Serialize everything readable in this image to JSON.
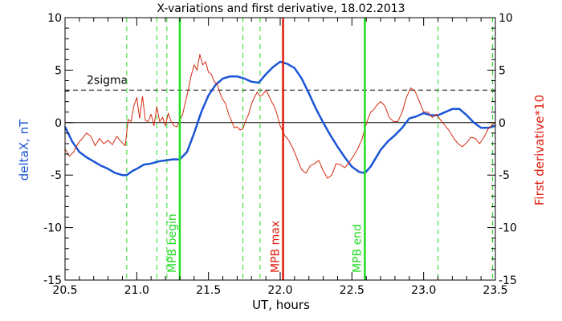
{
  "chart_data": {
    "type": "line",
    "title": "X-variations and first derivative, 18.02.2013",
    "xlabel": "UT, hours",
    "ylabel_left": "deltaX, nT",
    "ylabel_right": "First derivative*10",
    "xlim": [
      20.5,
      23.5
    ],
    "ylim_left": [
      -15,
      10
    ],
    "ylim_right": [
      -15,
      10
    ],
    "x_ticks": [
      "20.5",
      "21.0",
      "21.5",
      "22.0",
      "22.5",
      "23.0",
      "23.5"
    ],
    "x_tick_values": [
      20.5,
      21.0,
      21.5,
      22.0,
      22.5,
      23.0,
      23.5
    ],
    "y_ticks": [
      "-15",
      "-10",
      "-5",
      "0",
      "5",
      "10"
    ],
    "y_tick_values": [
      -15,
      -10,
      -5,
      0,
      5,
      10
    ],
    "zero_line": 0,
    "sigma_line": {
      "label": "2sigma",
      "value": 3.1
    },
    "colors": {
      "deltaX": "#1a55d6",
      "derivative": "#d42a10",
      "green": "#22dd22",
      "red_line": "#e01a0a"
    },
    "vlines_major": [
      {
        "x": 21.3,
        "label": "MPB begin",
        "color": "#22dd22"
      },
      {
        "x": 22.02,
        "label": "MPB max",
        "color": "#e01a0a"
      },
      {
        "x": 22.59,
        "label": "MPB end",
        "color": "#22dd22"
      }
    ],
    "vlines_dashed": [
      20.93,
      21.14,
      21.21,
      21.74,
      21.86,
      23.1,
      23.48
    ],
    "series": [
      {
        "key": "deltaX",
        "color": "#1a55d6",
        "x": [
          20.5,
          20.55,
          20.6,
          20.65,
          20.7,
          20.75,
          20.8,
          20.85,
          20.9,
          20.93,
          20.97,
          21.0,
          21.05,
          21.1,
          21.15,
          21.2,
          21.25,
          21.3,
          21.35,
          21.4,
          21.45,
          21.5,
          21.55,
          21.6,
          21.65,
          21.7,
          21.75,
          21.8,
          21.85,
          21.9,
          21.95,
          22.0,
          22.05,
          22.1,
          22.15,
          22.2,
          22.25,
          22.3,
          22.35,
          22.4,
          22.45,
          22.5,
          22.55,
          22.59,
          22.63,
          22.7,
          22.75,
          22.8,
          22.85,
          22.9,
          22.95,
          23.0,
          23.05,
          23.1,
          23.15,
          23.2,
          23.25,
          23.3,
          23.35,
          23.4,
          23.45,
          23.5
        ],
        "y": [
          -0.4,
          -1.8,
          -2.8,
          -3.3,
          -3.7,
          -4.1,
          -4.4,
          -4.8,
          -5.0,
          -5.0,
          -4.6,
          -4.4,
          -4.0,
          -3.9,
          -3.7,
          -3.6,
          -3.5,
          -3.5,
          -2.8,
          -1.0,
          1.0,
          2.6,
          3.6,
          4.2,
          4.4,
          4.4,
          4.2,
          3.9,
          3.8,
          4.6,
          5.3,
          5.8,
          5.6,
          5.2,
          4.2,
          2.8,
          1.3,
          0.0,
          -1.2,
          -2.3,
          -3.3,
          -4.2,
          -4.7,
          -4.8,
          -4.2,
          -2.6,
          -1.8,
          -1.2,
          -0.5,
          0.4,
          0.6,
          0.9,
          0.7,
          0.7,
          1.0,
          1.3,
          1.3,
          0.7,
          0.0,
          -0.5,
          -0.5,
          -0.3
        ]
      },
      {
        "key": "derivative",
        "color": "#d42a10",
        "x": [
          20.5,
          20.53,
          20.56,
          20.59,
          20.62,
          20.65,
          20.68,
          20.71,
          20.74,
          20.77,
          20.8,
          20.83,
          20.86,
          20.89,
          20.92,
          20.94,
          20.96,
          20.98,
          21.0,
          21.02,
          21.04,
          21.06,
          21.08,
          21.1,
          21.12,
          21.14,
          21.16,
          21.18,
          21.2,
          21.22,
          21.24,
          21.26,
          21.28,
          21.3,
          21.32,
          21.34,
          21.36,
          21.38,
          21.4,
          21.42,
          21.44,
          21.46,
          21.48,
          21.5,
          21.52,
          21.54,
          21.56,
          21.58,
          21.6,
          21.62,
          21.64,
          21.66,
          21.68,
          21.7,
          21.72,
          21.74,
          21.76,
          21.78,
          21.8,
          21.82,
          21.84,
          21.86,
          21.88,
          21.9,
          21.92,
          21.94,
          21.96,
          21.98,
          22.0,
          22.03,
          22.06,
          22.09,
          22.12,
          22.15,
          22.18,
          22.21,
          22.24,
          22.27,
          22.3,
          22.33,
          22.36,
          22.39,
          22.42,
          22.45,
          22.48,
          22.51,
          22.54,
          22.57,
          22.59,
          22.61,
          22.63,
          22.65,
          22.67,
          22.7,
          22.73,
          22.76,
          22.79,
          22.82,
          22.85,
          22.88,
          22.91,
          22.94,
          22.97,
          23.0,
          23.03,
          23.06,
          23.09,
          23.12,
          23.15,
          23.18,
          23.21,
          23.24,
          23.27,
          23.3,
          23.33,
          23.36,
          23.39,
          23.42,
          23.45,
          23.48,
          23.5
        ],
        "y": [
          -2.5,
          -3.2,
          -2.8,
          -2.0,
          -1.5,
          -1.0,
          -1.3,
          -2.2,
          -1.5,
          -2.0,
          -1.7,
          -2.1,
          -1.3,
          -1.8,
          -2.2,
          0.3,
          0.1,
          1.6,
          2.4,
          0.4,
          2.5,
          0.2,
          0.1,
          0.8,
          -0.3,
          1.5,
          0.1,
          0.5,
          -0.3,
          0.9,
          0.1,
          -0.3,
          -0.4,
          0.2,
          0.8,
          2.0,
          3.2,
          4.5,
          5.5,
          5.0,
          6.5,
          5.5,
          5.8,
          4.8,
          4.6,
          3.9,
          3.7,
          2.8,
          2.2,
          1.8,
          0.8,
          0.2,
          -0.5,
          -0.4,
          -0.7,
          -0.6,
          0.2,
          0.8,
          1.8,
          2.4,
          2.9,
          2.5,
          2.7,
          3.1,
          2.6,
          2.0,
          1.5,
          0.7,
          -0.3,
          -1.2,
          -1.7,
          -2.5,
          -3.5,
          -4.5,
          -4.8,
          -4.1,
          -3.9,
          -3.6,
          -4.6,
          -5.3,
          -5.0,
          -3.9,
          -4.0,
          -4.3,
          -3.8,
          -3.2,
          -2.5,
          -1.6,
          -0.6,
          0.3,
          1.0,
          1.2,
          1.6,
          2.0,
          1.6,
          0.5,
          0.1,
          0.1,
          1.0,
          2.4,
          3.3,
          3.0,
          2.0,
          1.0,
          1.0,
          0.5,
          0.8,
          0.2,
          -0.3,
          -0.8,
          -1.5,
          -2.0,
          -2.3,
          -1.9,
          -1.4,
          -1.5,
          -2.0,
          -1.4,
          -0.6,
          -0.2,
          0.0
        ]
      }
    ]
  }
}
